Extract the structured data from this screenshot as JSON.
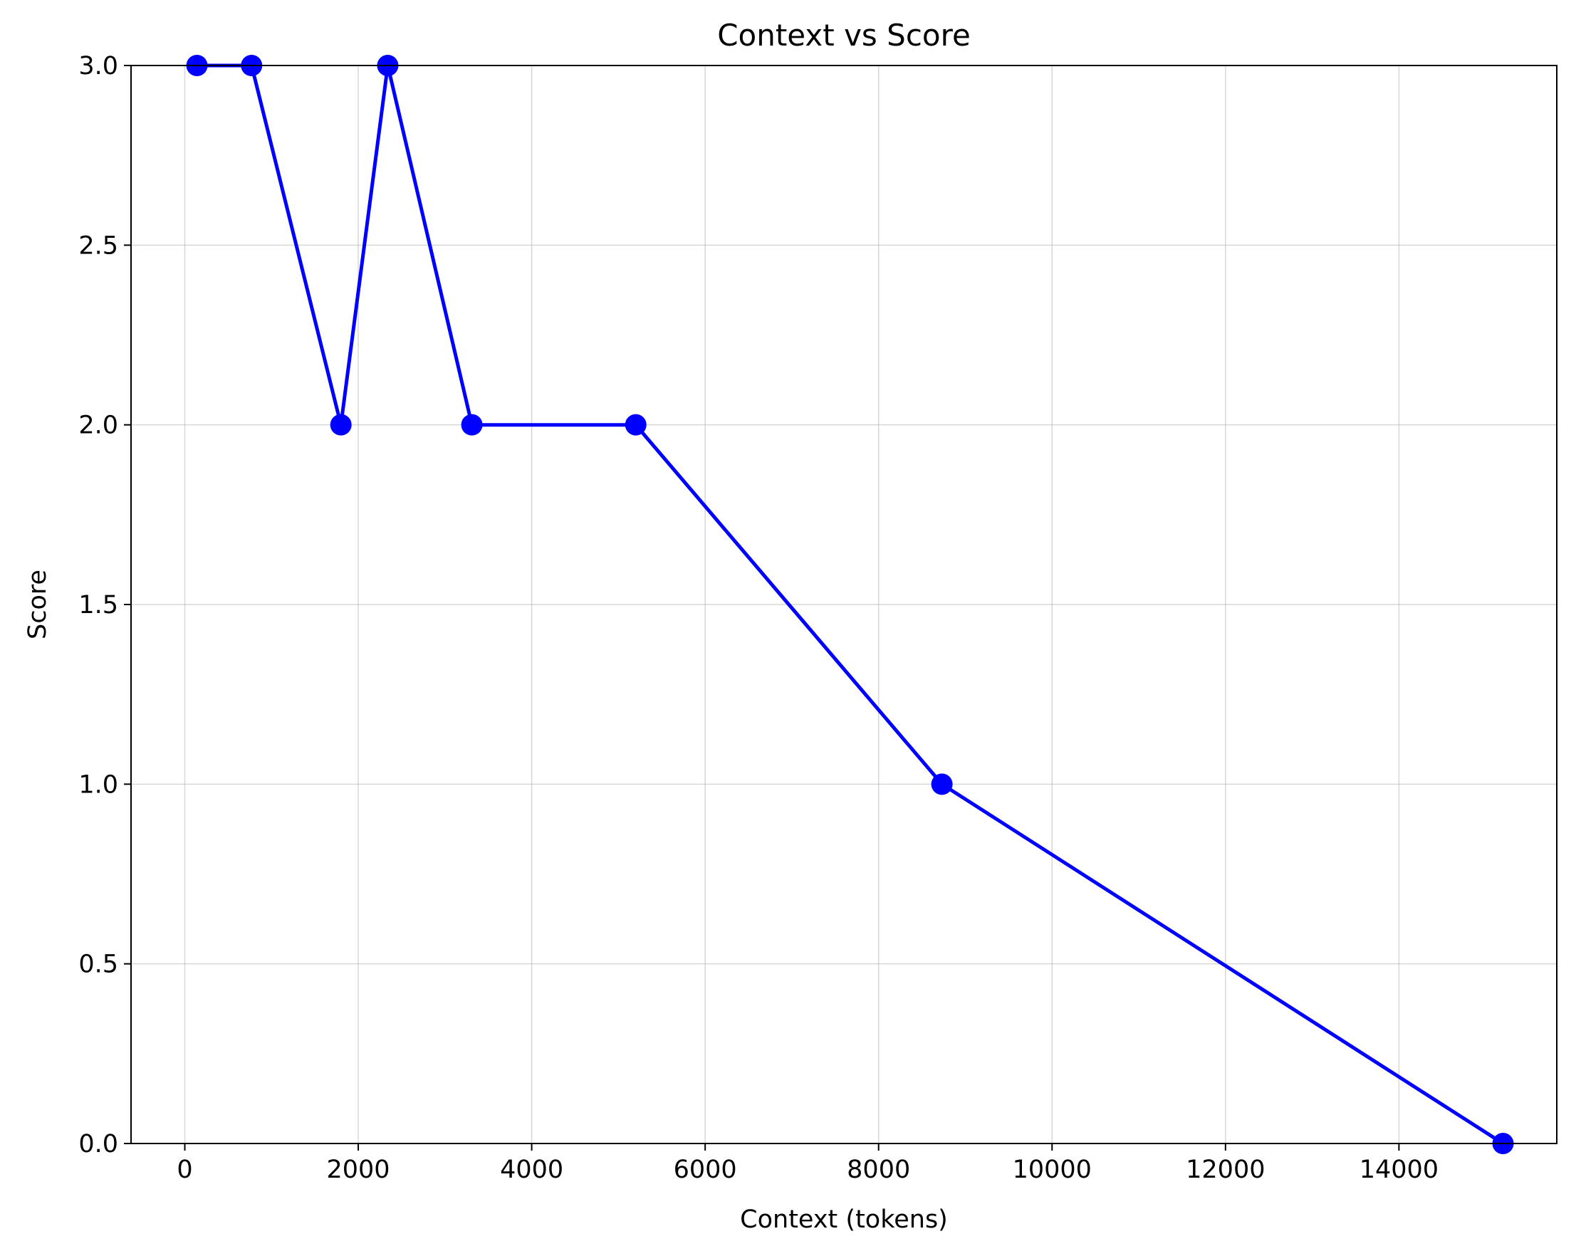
{
  "chart_data": {
    "type": "line",
    "title": "Context vs Score",
    "xlabel": "Context (tokens)",
    "ylabel": "Score",
    "xlim": [
      -620,
      15820
    ],
    "ylim": [
      0,
      3
    ],
    "xticks": [
      0,
      2000,
      4000,
      6000,
      8000,
      10000,
      12000,
      14000
    ],
    "xtick_labels": [
      "0",
      "2000",
      "4000",
      "6000",
      "8000",
      "10000",
      "12000",
      "14000"
    ],
    "yticks": [
      0,
      0.5,
      1,
      1.5,
      2,
      2.5,
      3
    ],
    "ytick_labels": [
      "0.0",
      "0.5",
      "1.0",
      "1.5",
      "2.0",
      "2.5",
      "3.0"
    ],
    "grid": true,
    "legend": false,
    "series": [
      {
        "color": "#0000ff",
        "marker": "circle",
        "x": [
          140,
          770,
          1800,
          2340,
          3310,
          5200,
          8730,
          15200
        ],
        "y": [
          3,
          3,
          2,
          3,
          2,
          2,
          1,
          0
        ]
      }
    ]
  }
}
